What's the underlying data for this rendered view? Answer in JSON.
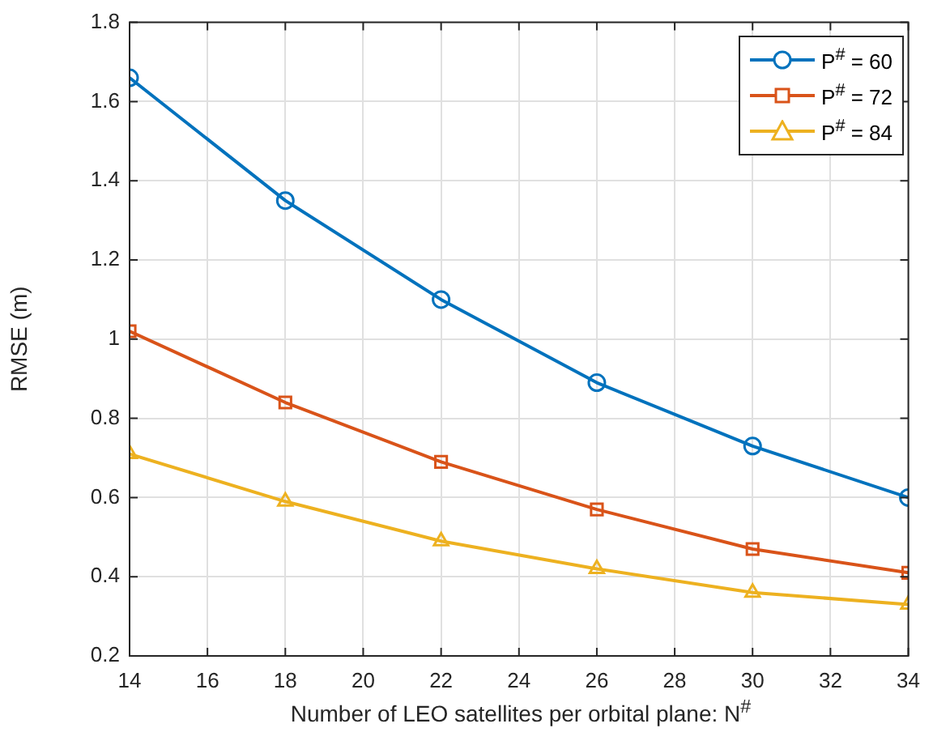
{
  "chart_data": {
    "type": "line",
    "xlabel": "Number of LEO satellites per orbital plane: N$^{#}$",
    "ylabel": "RMSE (m)",
    "x": [
      14,
      18,
      22,
      26,
      30,
      34
    ],
    "series": [
      {
        "name": "P$^{#}$ = 60",
        "color": "#0072bd",
        "marker": "circle",
        "values": [
          1.66,
          1.35,
          1.1,
          0.89,
          0.73,
          0.6
        ]
      },
      {
        "name": "P$^{#}$ = 72",
        "color": "#d95319",
        "marker": "square",
        "values": [
          1.02,
          0.84,
          0.69,
          0.57,
          0.47,
          0.41
        ]
      },
      {
        "name": "P$^{#}$ = 84",
        "color": "#edb120",
        "marker": "triangle",
        "values": [
          0.71,
          0.59,
          0.49,
          0.42,
          0.36,
          0.33
        ]
      }
    ],
    "xlim": [
      14,
      34
    ],
    "xticks": [
      14,
      16,
      18,
      20,
      22,
      24,
      26,
      28,
      30,
      32,
      34
    ],
    "ylim": [
      0.2,
      1.8
    ],
    "yticks": [
      0.2,
      0.4,
      0.6,
      0.8,
      1,
      1.2,
      1.4,
      1.6,
      1.8
    ],
    "grid": true,
    "legend": "top right",
    "line_style": "solid"
  }
}
